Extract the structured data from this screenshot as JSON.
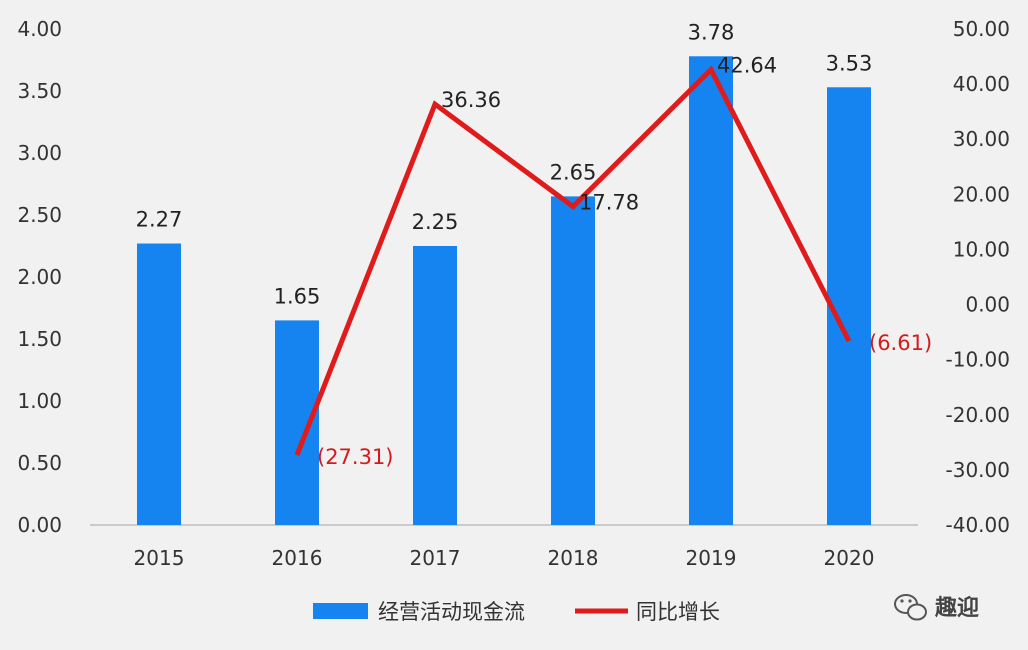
{
  "chart_data": {
    "type": "bar",
    "categories": [
      "2015",
      "2016",
      "2017",
      "2018",
      "2019",
      "2020"
    ],
    "series": [
      {
        "name": "经营活动现金流",
        "type": "bar",
        "axis": "left",
        "values": [
          2.27,
          1.65,
          2.25,
          2.65,
          3.78,
          3.53
        ],
        "labels": [
          "2.27",
          "1.65",
          "2.25",
          "2.65",
          "3.78",
          "3.53"
        ],
        "color": "#1583f0"
      },
      {
        "name": "同比增长",
        "type": "line",
        "axis": "right",
        "values": [
          null,
          -27.31,
          36.36,
          17.78,
          42.64,
          -6.61
        ],
        "labels": [
          "",
          "(27.31)",
          "36.36",
          "17.78",
          "42.64",
          "(6.61)"
        ],
        "color": "#e01b1b"
      }
    ],
    "y_left": {
      "ylim": [
        0,
        4
      ],
      "ticks": [
        "0.00",
        "0.50",
        "1.00",
        "1.50",
        "2.00",
        "2.50",
        "3.00",
        "3.50",
        "4.00"
      ]
    },
    "y_right": {
      "ylim": [
        -40,
        50
      ],
      "ticks": [
        "-40.00",
        "-30.00",
        "-20.00",
        "-10.00",
        "0.00",
        "10.00",
        "20.00",
        "30.00",
        "40.00",
        "50.00"
      ]
    },
    "grid": false,
    "legend": "bottom"
  },
  "watermark": {
    "text": "趣迎",
    "icon": "wechat-icon"
  }
}
